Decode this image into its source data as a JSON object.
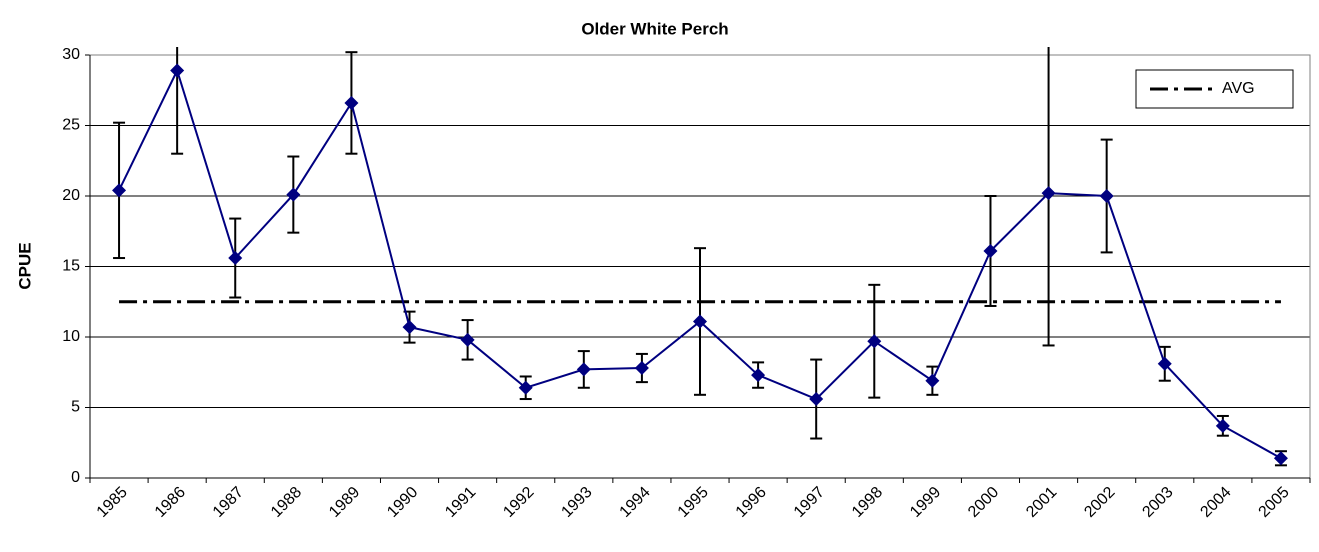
{
  "chart_data": {
    "type": "line",
    "title": "Older White Perch",
    "y_label": "CPUE",
    "categories": [
      "1985",
      "1986",
      "1987",
      "1988",
      "1989",
      "1990",
      "1991",
      "1992",
      "1993",
      "1994",
      "1995",
      "1996",
      "1997",
      "1998",
      "1999",
      "2000",
      "2001",
      "2002",
      "2003",
      "2004",
      "2005"
    ],
    "series": [
      {
        "color": "#000080",
        "values": [
          20.4,
          28.9,
          15.6,
          20.1,
          26.6,
          10.7,
          9.8,
          6.4,
          7.7,
          7.8,
          11.1,
          7.3,
          5.6,
          9.7,
          6.9,
          16.1,
          20.2,
          20.0,
          8.1,
          3.7,
          1.4
        ],
        "errors": [
          4.8,
          5.9,
          2.8,
          2.7,
          3.6,
          1.1,
          1.4,
          0.8,
          1.3,
          1.0,
          5.2,
          0.9,
          2.8,
          4.0,
          1.0,
          3.9,
          10.8,
          4.0,
          1.2,
          0.7,
          0.5
        ]
      }
    ],
    "reference_line": {
      "name": "AVG",
      "value": 12.5,
      "color": "#000000"
    },
    "ylim": [
      0,
      30
    ],
    "yticks": [
      0,
      5,
      10,
      15,
      20,
      25,
      30
    ],
    "grid": true,
    "legend": "top-right"
  }
}
